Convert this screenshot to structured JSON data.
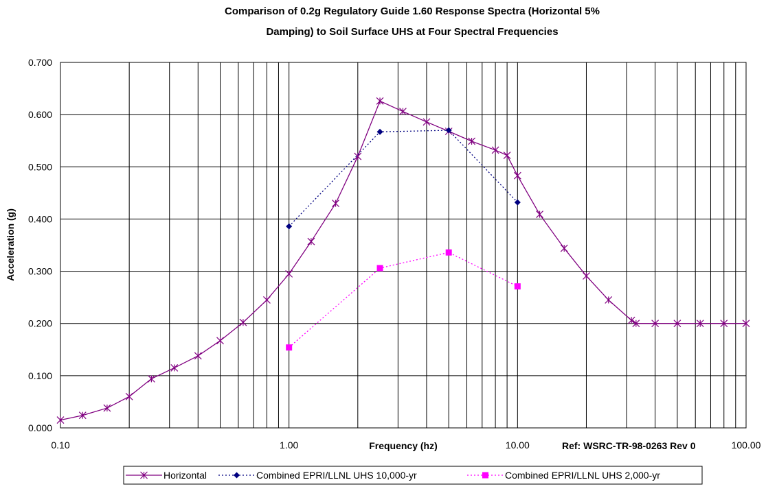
{
  "chart_data": {
    "type": "line",
    "title_lines": [
      "Comparison of 0.2g Regulatory Guide 1.60 Response Spectra (Horizontal 5%",
      "Damping) to Soil Surface UHS at Four Spectral Frequencies"
    ],
    "xlabel": "Frequency (hz)",
    "ylabel": "Acceleration (g)",
    "x_scale": "log",
    "xlim": [
      0.1,
      100
    ],
    "ylim": [
      0,
      0.7
    ],
    "x_ticks": [
      0.1,
      1,
      10,
      100
    ],
    "x_tick_labels": [
      "0.10",
      "1.00",
      "10.00",
      "100.00"
    ],
    "y_ticks": [
      0,
      0.1,
      0.2,
      0.3,
      0.4,
      0.5,
      0.6,
      0.7
    ],
    "y_tick_labels": [
      "0.000",
      "0.100",
      "0.200",
      "0.300",
      "0.400",
      "0.500",
      "0.600",
      "0.700"
    ],
    "grid": true,
    "legend_position": "bottom",
    "annotation": "Ref:  WSRC-TR-98-0263 Rev 0",
    "series": [
      {
        "name": "Horizontal",
        "color": "#800080",
        "dash": "solid",
        "marker": "star",
        "x": [
          0.1,
          0.125,
          0.16,
          0.2,
          0.25,
          0.315,
          0.4,
          0.5,
          0.63,
          0.8,
          1.0,
          1.25,
          1.6,
          2.0,
          2.5,
          3.15,
          4.0,
          5.0,
          6.3,
          8.0,
          9.0,
          10.0,
          12.5,
          16.0,
          20.0,
          25.0,
          31.5,
          33.0,
          40.0,
          50.0,
          63.0,
          80.0,
          100.0
        ],
        "y": [
          0.015,
          0.024,
          0.038,
          0.06,
          0.094,
          0.115,
          0.138,
          0.167,
          0.202,
          0.245,
          0.295,
          0.357,
          0.43,
          0.52,
          0.626,
          0.606,
          0.586,
          0.568,
          0.549,
          0.532,
          0.522,
          0.483,
          0.409,
          0.344,
          0.291,
          0.245,
          0.206,
          0.2,
          0.2,
          0.2,
          0.2,
          0.2,
          0.2
        ]
      },
      {
        "name": "Combined EPRI/LLNL UHS 10,000-yr",
        "color": "#000080",
        "dash": "dotted",
        "marker": "diamond",
        "x": [
          1.0,
          2.5,
          5.0,
          10.0
        ],
        "y": [
          0.386,
          0.567,
          0.57,
          0.432
        ]
      },
      {
        "name": "Combined EPRI/LLNL UHS 2,000-yr",
        "color": "#ff00ff",
        "dash": "dotted",
        "marker": "square",
        "x": [
          1.0,
          2.5,
          5.0,
          10.0
        ],
        "y": [
          0.154,
          0.306,
          0.336,
          0.271
        ]
      }
    ]
  }
}
